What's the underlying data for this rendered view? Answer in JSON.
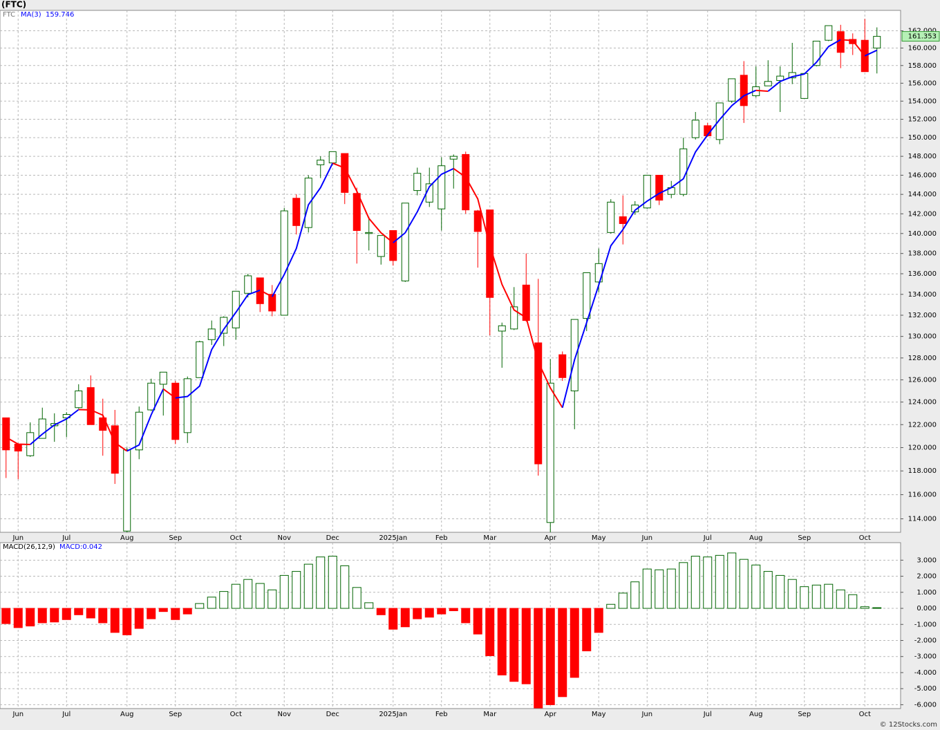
{
  "chart_data": [
    {
      "type": "candlestick",
      "title": "(FTC)",
      "log_scale": true,
      "grid": true,
      "up_color": "#006400",
      "down_color": "#ff0000",
      "categories": [
        null,
        "Jun",
        null,
        null,
        null,
        "Jul",
        null,
        null,
        null,
        null,
        "Aug",
        null,
        null,
        null,
        "Sep",
        null,
        null,
        null,
        null,
        "Oct",
        null,
        null,
        null,
        "Nov",
        null,
        null,
        null,
        "Dec",
        null,
        null,
        null,
        null,
        "2025Jan",
        null,
        null,
        null,
        "Feb",
        null,
        null,
        null,
        "Mar",
        null,
        null,
        null,
        null,
        "Apr",
        null,
        null,
        null,
        "May",
        null,
        null,
        null,
        "Jun",
        null,
        null,
        null,
        null,
        "Jul",
        null,
        null,
        null,
        "Aug",
        null,
        null,
        null,
        "Sep",
        null,
        null,
        null,
        null,
        "Oct",
        null
      ],
      "series": [
        {
          "name": "FTC",
          "open": [
            122.6,
            120.3,
            119.3,
            120.8,
            121.9,
            122.6,
            123.5,
            125.3,
            122.6,
            121.9,
            113.0,
            119.8,
            123.3,
            125.6,
            125.7,
            121.3,
            126.2,
            129.7,
            130.3,
            130.8,
            134.1,
            135.6,
            134.0,
            132.0,
            143.6,
            140.6,
            147.1,
            147.3,
            148.3,
            144.1,
            140.0,
            137.7,
            140.3,
            135.3,
            144.4,
            143.2,
            142.5,
            147.7,
            148.2,
            142.3,
            142.4,
            130.5,
            130.7,
            134.9,
            129.4,
            113.7,
            128.3,
            125.0,
            131.7,
            135.2,
            140.1,
            141.7,
            142.2,
            142.6,
            146.0,
            144.0,
            144.0,
            150.0,
            151.3,
            149.8,
            154.0,
            156.9,
            154.6,
            155.7,
            156.3,
            156.6,
            154.3,
            158.0,
            160.9,
            161.9,
            161.0,
            160.9,
            160.0
          ],
          "high": [
            122.6,
            120.4,
            122.2,
            123.5,
            123.0,
            123.1,
            125.6,
            126.4,
            124.3,
            123.3,
            120.0,
            123.6,
            126.1,
            126.7,
            125.9,
            126.3,
            129.6,
            131.5,
            131.9,
            134.3,
            136.0,
            135.6,
            134.9,
            142.6,
            144.0,
            146.0,
            148.0,
            148.5,
            148.3,
            144.7,
            141.7,
            139.8,
            140.3,
            143.1,
            146.8,
            146.8,
            147.9,
            148.2,
            148.5,
            142.4,
            142.4,
            131.3,
            134.7,
            138.0,
            135.5,
            127.9,
            128.6,
            131.6,
            136.1,
            138.5,
            143.5,
            143.9,
            143.3,
            146.0,
            146.0,
            145.4,
            150.0,
            152.8,
            151.6,
            153.8,
            156.5,
            158.5,
            157.9,
            158.6,
            157.9,
            160.6,
            157.1,
            160.8,
            162.6,
            162.7,
            161.7,
            163.4,
            162.4
          ],
          "low": [
            117.4,
            117.3,
            119.2,
            120.8,
            120.5,
            120.9,
            123.4,
            122.0,
            119.3,
            116.9,
            112.9,
            119.0,
            123.2,
            122.8,
            120.3,
            120.4,
            126.2,
            129.2,
            129.1,
            129.7,
            133.7,
            132.3,
            131.9,
            132.0,
            139.9,
            140.1,
            145.7,
            147.1,
            143.0,
            137.0,
            138.3,
            136.9,
            136.8,
            135.2,
            143.9,
            142.7,
            140.3,
            144.6,
            142.0,
            136.6,
            130.1,
            127.1,
            130.6,
            131.4,
            117.6,
            112.9,
            125.9,
            121.6,
            130.5,
            134.2,
            140.0,
            138.9,
            141.9,
            142.5,
            142.9,
            143.6,
            143.8,
            149.8,
            150.1,
            149.3,
            153.8,
            151.6,
            154.4,
            155.7,
            152.8,
            155.9,
            154.3,
            157.9,
            160.8,
            157.7,
            159.2,
            157.3,
            157.1
          ],
          "close": [
            119.8,
            119.7,
            121.3,
            122.5,
            122.1,
            122.9,
            125.0,
            122.0,
            121.5,
            117.8,
            119.8,
            123.1,
            125.7,
            126.7,
            120.7,
            126.1,
            129.5,
            130.7,
            131.8,
            134.3,
            135.8,
            133.1,
            132.4,
            142.3,
            140.8,
            145.7,
            147.6,
            148.5,
            144.2,
            140.3,
            140.1,
            139.8,
            137.3,
            143.1,
            146.2,
            145.1,
            147.0,
            148.0,
            142.4,
            140.2,
            133.7,
            131.0,
            132.8,
            131.5,
            118.6,
            125.7,
            126.2,
            131.6,
            136.1,
            137.0,
            143.2,
            141.0,
            142.9,
            146.0,
            143.4,
            144.7,
            148.8,
            151.9,
            150.2,
            153.8,
            156.5,
            153.5,
            155.6,
            156.2,
            156.8,
            157.2,
            157.1,
            160.8,
            162.6,
            159.5,
            160.5,
            157.3,
            161.353
          ]
        },
        {
          "name": "MA(3)",
          "type": "line",
          "color": "#0000ff",
          "falling_color": "#ff0000",
          "values": [
            120.9,
            120.3,
            120.27,
            121.17,
            121.97,
            122.5,
            123.33,
            123.3,
            122.83,
            120.43,
            119.7,
            120.23,
            122.87,
            125.17,
            124.37,
            124.5,
            125.43,
            128.77,
            130.67,
            132.27,
            133.97,
            134.4,
            133.77,
            135.93,
            138.5,
            142.93,
            144.7,
            147.27,
            146.77,
            144.33,
            141.53,
            140.07,
            139.07,
            140.07,
            142.2,
            144.8,
            146.1,
            146.7,
            145.8,
            143.53,
            138.77,
            134.97,
            132.5,
            131.77,
            127.63,
            125.27,
            123.5,
            127.83,
            131.3,
            134.9,
            138.77,
            140.4,
            142.37,
            143.3,
            144.1,
            144.7,
            145.63,
            148.47,
            150.3,
            151.97,
            153.5,
            154.6,
            155.2,
            155.1,
            156.2,
            156.73,
            157.03,
            158.37,
            160.17,
            160.97,
            160.87,
            159.1,
            159.746
          ]
        }
      ],
      "ylim": [
        112.9,
        164.4
      ],
      "yticks": [
        {
          "value": 114,
          "label": "114.000"
        },
        {
          "value": 116,
          "label": "116.000"
        },
        {
          "value": 118,
          "label": "118.000"
        },
        {
          "value": 120,
          "label": "120.000"
        },
        {
          "value": 122,
          "label": "122.000"
        },
        {
          "value": 124,
          "label": "124.000"
        },
        {
          "value": 126,
          "label": "126.000"
        },
        {
          "value": 128,
          "label": "128.000"
        },
        {
          "value": 130,
          "label": "130.000"
        },
        {
          "value": 132,
          "label": "132.000"
        },
        {
          "value": 134,
          "label": "134.000"
        },
        {
          "value": 136,
          "label": "136.000"
        },
        {
          "value": 138,
          "label": "138.000"
        },
        {
          "value": 140,
          "label": "140.000"
        },
        {
          "value": 142,
          "label": "142.000"
        },
        {
          "value": 144,
          "label": "144.000"
        },
        {
          "value": 146,
          "label": "146.000"
        },
        {
          "value": 148,
          "label": "148.000"
        },
        {
          "value": 150,
          "label": "150.000"
        },
        {
          "value": 152,
          "label": "152.000"
        },
        {
          "value": 154,
          "label": "154.000"
        },
        {
          "value": 156,
          "label": "156.000"
        },
        {
          "value": 158,
          "label": "158.000"
        },
        {
          "value": 160,
          "label": "160.000"
        },
        {
          "value": 162,
          "label": "162.000"
        }
      ]
    },
    {
      "type": "bar",
      "title": "MACD(26,12,9)",
      "grid": true,
      "series": [
        {
          "name": "MACD",
          "legend": "MACD:0.042",
          "color": "#ff0000",
          "positive_color": "#006400",
          "values": [
            -0.95,
            -1.2,
            -1.1,
            -0.9,
            -0.85,
            -0.7,
            -0.4,
            -0.6,
            -0.9,
            -1.5,
            -1.65,
            -1.25,
            -0.65,
            -0.2,
            -0.7,
            -0.35,
            0.3,
            0.7,
            1.05,
            1.5,
            1.8,
            1.55,
            1.15,
            2.05,
            2.3,
            2.75,
            3.2,
            3.25,
            2.65,
            1.3,
            0.35,
            -0.4,
            -1.3,
            -1.15,
            -0.65,
            -0.55,
            -0.35,
            -0.15,
            -0.9,
            -1.6,
            -2.95,
            -4.15,
            -4.55,
            -4.7,
            -6.2,
            -6.0,
            -5.5,
            -4.3,
            -2.65,
            -1.5,
            0.25,
            0.95,
            1.65,
            2.45,
            2.4,
            2.45,
            2.85,
            3.25,
            3.2,
            3.3,
            3.45,
            3.05,
            2.7,
            2.3,
            2.05,
            1.8,
            1.35,
            1.45,
            1.5,
            1.15,
            0.85,
            0.1,
            0.042
          ]
        }
      ],
      "ylim": [
        -6.24,
        4.09
      ],
      "yticks": [
        {
          "value": -6,
          "label": "-6.000"
        },
        {
          "value": -5,
          "label": "-5.000"
        },
        {
          "value": -4,
          "label": "-4.000"
        },
        {
          "value": -3,
          "label": "-3.000"
        },
        {
          "value": -2,
          "label": "-2.000"
        },
        {
          "value": -1,
          "label": "-1.000"
        },
        {
          "value": 0,
          "label": "0.000"
        },
        {
          "value": 1,
          "label": "1.000"
        },
        {
          "value": 2,
          "label": "2.000"
        },
        {
          "value": 3,
          "label": "3.000"
        }
      ]
    }
  ],
  "footer": "© 12Stocks.com"
}
